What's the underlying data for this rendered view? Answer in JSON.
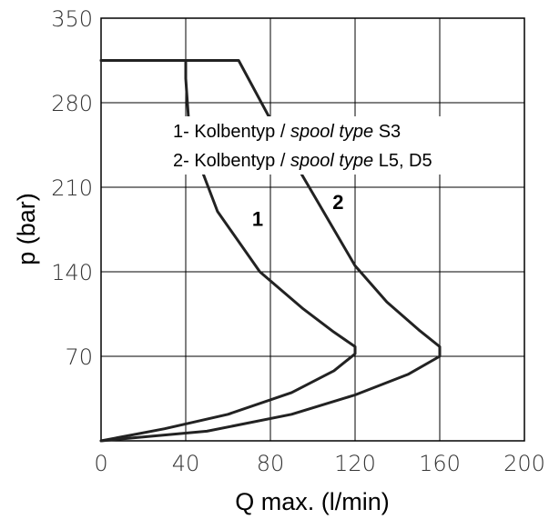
{
  "chart_data": {
    "type": "line",
    "xlabel": "Q max. (l/min)",
    "ylabel": "p (bar)",
    "xlim": [
      0,
      200
    ],
    "ylim": [
      0,
      350
    ],
    "x_ticks": [
      "0",
      "40",
      "80",
      "120",
      "160",
      "200"
    ],
    "y_ticks": [
      "70",
      "140",
      "210",
      "280",
      "350"
    ],
    "x_tick_values": [
      0,
      40,
      80,
      120,
      160,
      200
    ],
    "y_tick_values": [
      70,
      140,
      210,
      280,
      350
    ],
    "grid": true,
    "line_color": "#222222",
    "legend": [
      {
        "prefix": "1- Kolbentyp / ",
        "italic": "spool type",
        "suffix": " S3"
      },
      {
        "prefix": "2- Kolbentyp / ",
        "italic": "spool type",
        "suffix": " L5, D5"
      }
    ],
    "series": [
      {
        "name": "1",
        "points": [
          [
            0,
            315
          ],
          [
            40,
            315
          ],
          [
            40,
            300
          ],
          [
            42,
            250
          ],
          [
            55,
            190
          ],
          [
            75,
            140
          ],
          [
            95,
            110
          ],
          [
            110,
            90
          ],
          [
            120,
            78
          ],
          [
            120,
            72
          ],
          [
            110,
            58
          ],
          [
            90,
            40
          ],
          [
            60,
            22
          ],
          [
            30,
            10
          ],
          [
            0,
            0
          ]
        ]
      },
      {
        "name": "2",
        "points": [
          [
            0,
            315
          ],
          [
            65,
            315
          ],
          [
            85,
            250
          ],
          [
            100,
            205
          ],
          [
            120,
            145
          ],
          [
            135,
            115
          ],
          [
            150,
            92
          ],
          [
            160,
            78
          ],
          [
            160,
            70
          ],
          [
            145,
            55
          ],
          [
            120,
            38
          ],
          [
            90,
            22
          ],
          [
            50,
            8
          ],
          [
            0,
            0
          ]
        ]
      }
    ],
    "curve_labels": [
      {
        "text": "1",
        "x": 74,
        "y": 178
      },
      {
        "text": "2",
        "x": 112,
        "y": 192
      }
    ]
  }
}
